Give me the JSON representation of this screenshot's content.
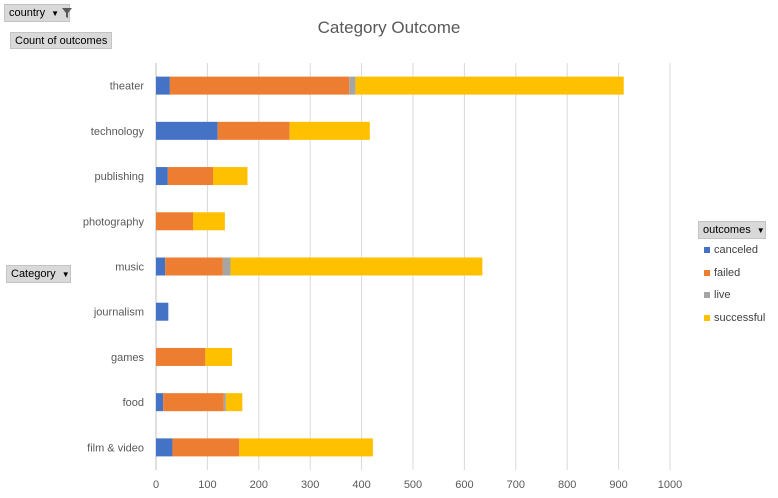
{
  "field_buttons": {
    "filter": "country",
    "values": "Count of outcomes",
    "rows": "Category",
    "legend": "outcomes"
  },
  "icons": {
    "filter_icon": "funnel-filter-icon",
    "dropdown_icon": "dropdown-triangle-icon"
  },
  "chart_data": {
    "type": "bar",
    "orientation": "horizontal",
    "stacked": true,
    "title": "Category Outcome",
    "xlabel": "",
    "ylabel": "",
    "xlim": [
      0,
      1000
    ],
    "xticks": [
      0,
      100,
      200,
      300,
      400,
      500,
      600,
      700,
      800,
      900,
      1000
    ],
    "grid": "vertical",
    "legend_position": "right",
    "categories": [
      "theater",
      "technology",
      "publishing",
      "photography",
      "music",
      "journalism",
      "games",
      "food",
      "film & video"
    ],
    "series": [
      {
        "name": "canceled",
        "color": "#4472c4",
        "values": [
          27,
          120,
          23,
          0,
          18,
          24,
          0,
          14,
          32
        ]
      },
      {
        "name": "failed",
        "color": "#ed7d31",
        "values": [
          349,
          140,
          88,
          72,
          112,
          0,
          96,
          118,
          130
        ]
      },
      {
        "name": "live",
        "color": "#a5a5a5",
        "values": [
          12,
          0,
          0,
          0,
          15,
          0,
          0,
          4,
          0
        ]
      },
      {
        "name": "successful",
        "color": "#ffc000",
        "values": [
          522,
          156,
          67,
          62,
          490,
          0,
          52,
          32,
          260
        ]
      }
    ]
  }
}
